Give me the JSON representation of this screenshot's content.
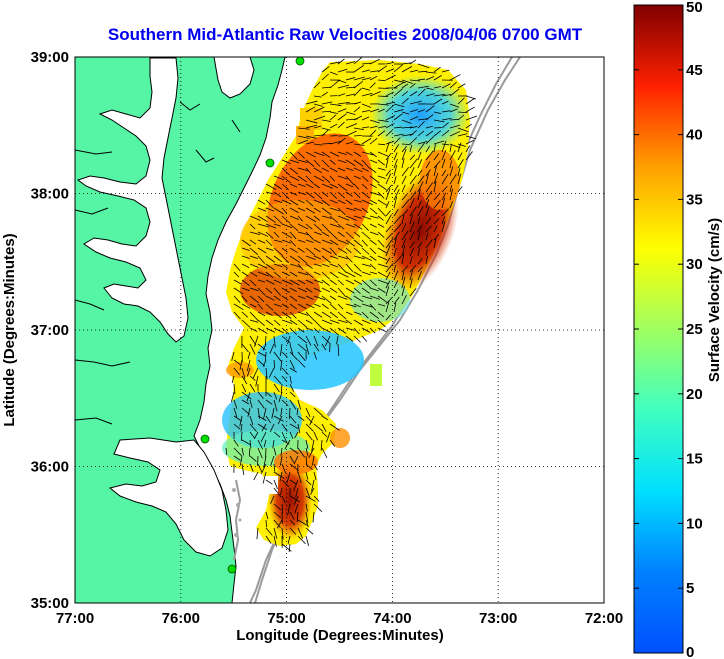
{
  "title": "Southern Mid-Atlantic Raw Velocities 2008/04/06 0700 GMT",
  "xlabel": "Longitude (Degrees:Minutes)",
  "ylabel": "Latitude (Degrees:Minutes)",
  "x_ticks": [
    "77:00",
    "76:00",
    "75:00",
    "74:00",
    "73:00",
    "72:00"
  ],
  "y_ticks": [
    "39:00",
    "38:00",
    "37:00",
    "36:00",
    "35:00"
  ],
  "colorbar": {
    "label": "Surface Velocity (cm/s)",
    "ticks": [
      "0",
      "5",
      "10",
      "15",
      "20",
      "25",
      "30",
      "35",
      "40",
      "45",
      "50"
    ],
    "range": [
      0,
      50
    ]
  },
  "map": {
    "lon_range": [
      -77,
      -72
    ],
    "lat_range": [
      35,
      39
    ],
    "grid": true,
    "land_color": "#55f5a5",
    "coast_color": "#000000",
    "bathymetry_color": "#999999",
    "station_color": "#00dd00"
  }
}
